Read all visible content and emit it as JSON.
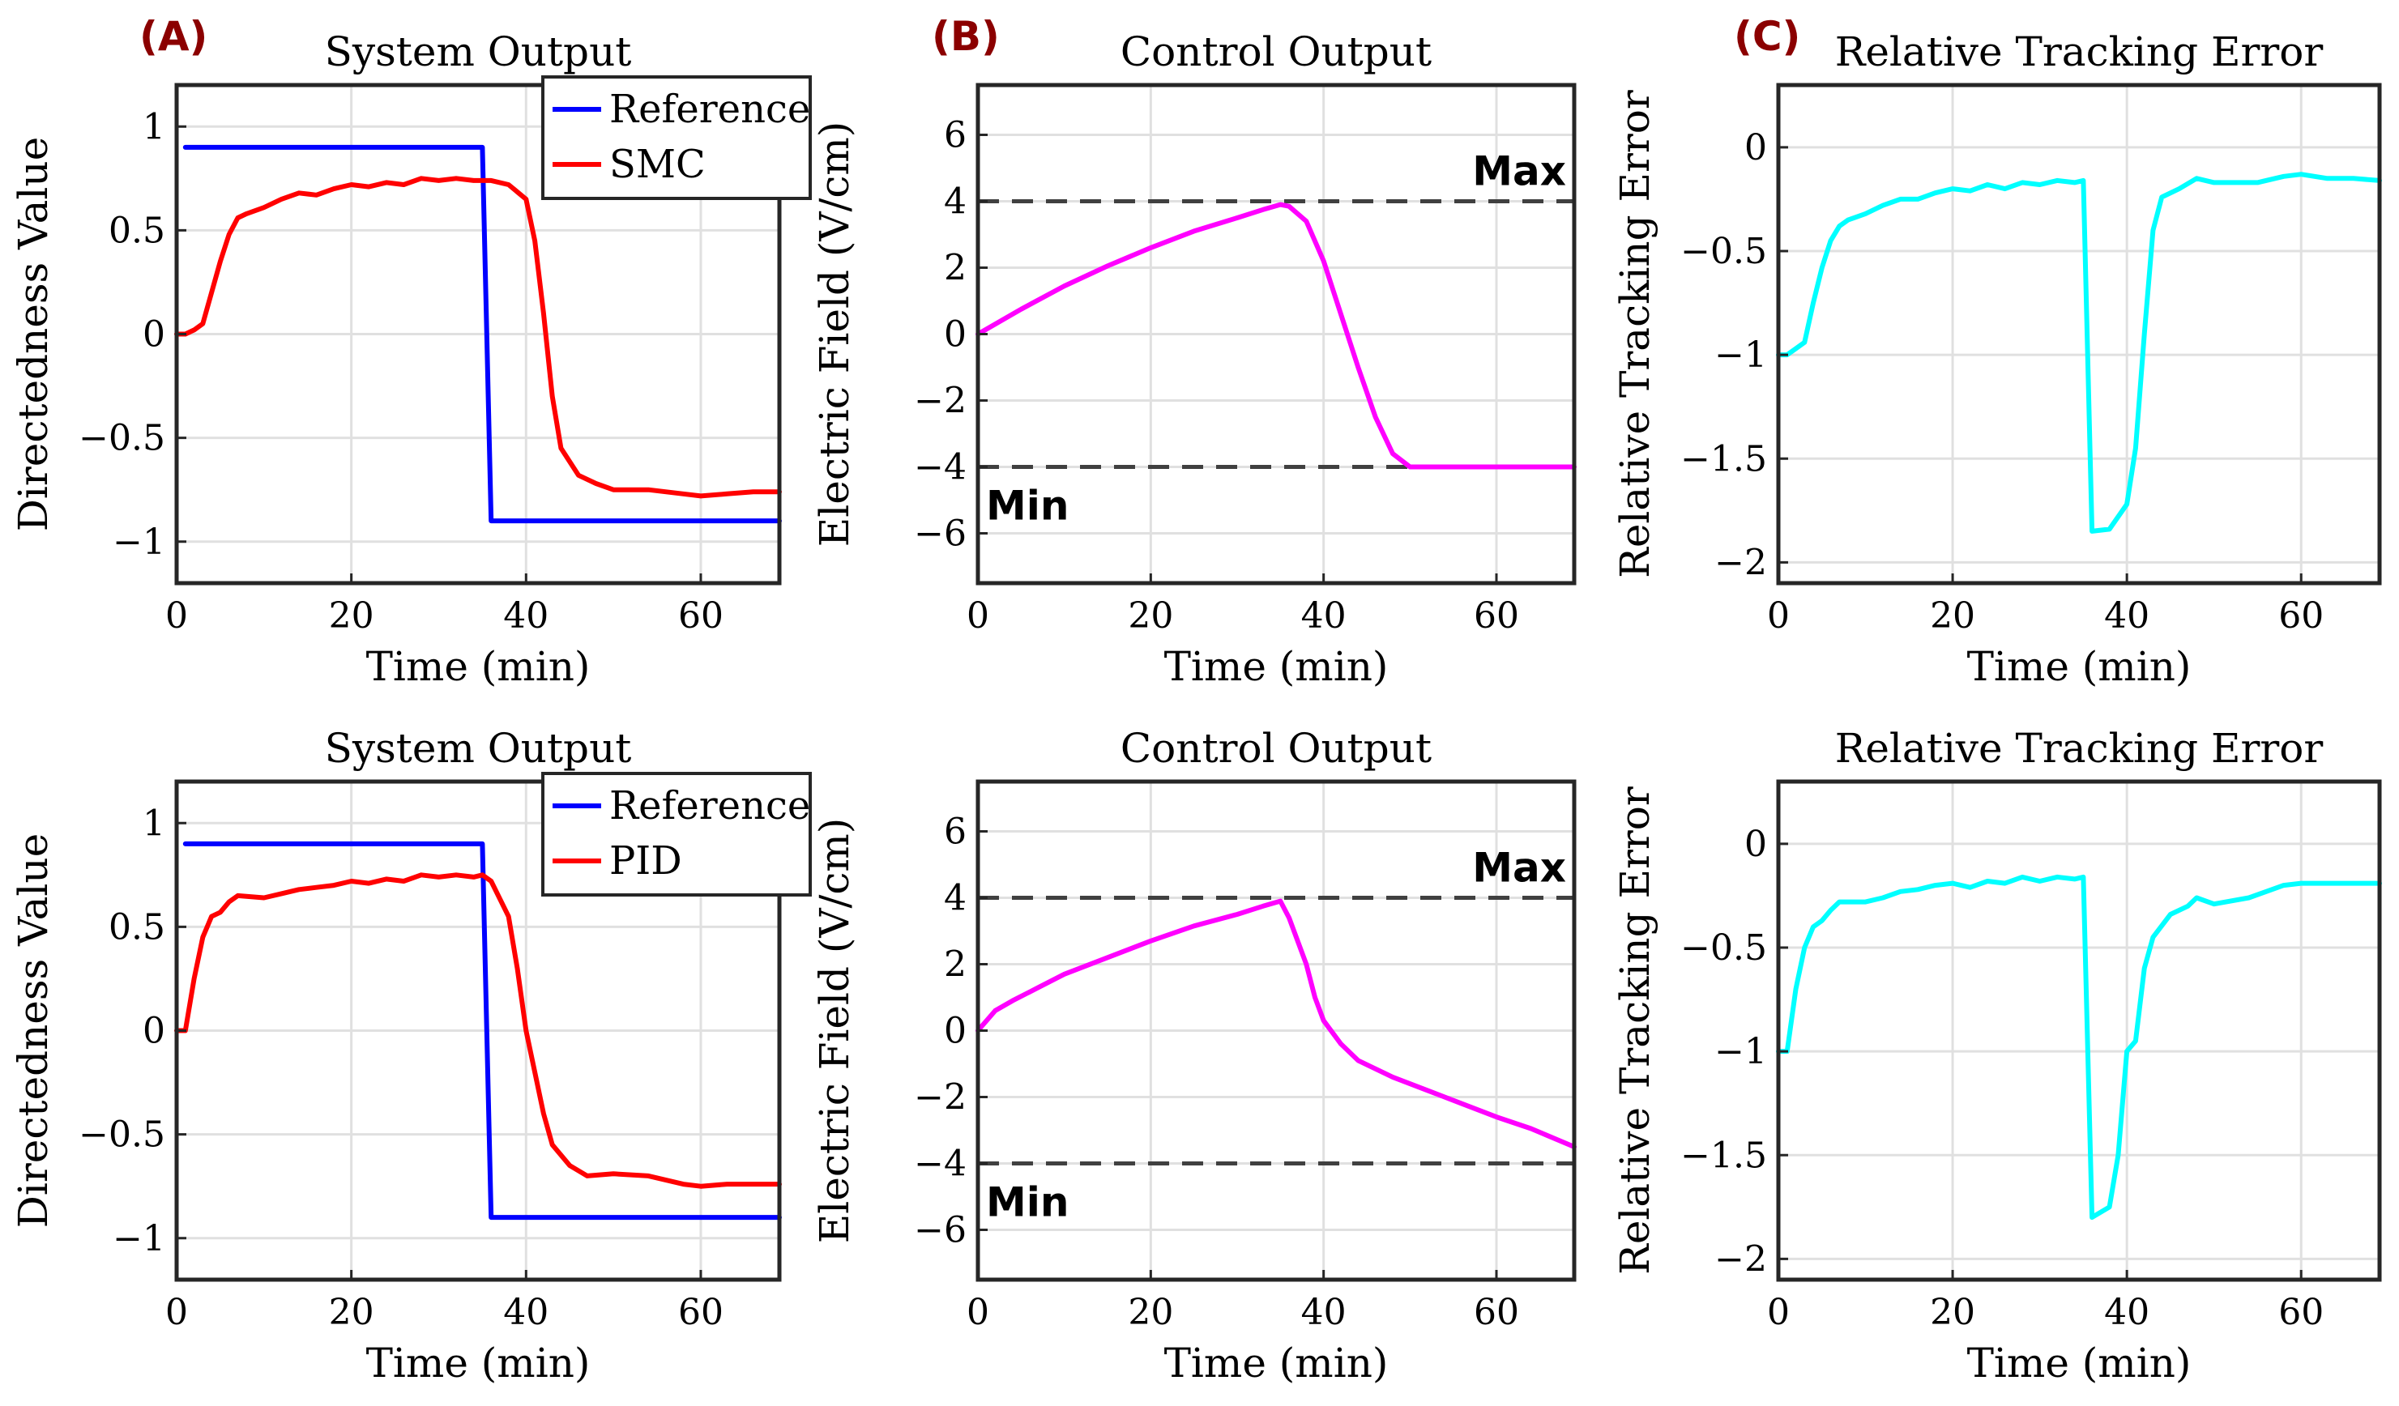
{
  "panel_labels": [
    "(A)",
    "(B)",
    "(C)"
  ],
  "chart_data": [
    {
      "id": "smc-system",
      "type": "line",
      "title": "System Output",
      "xlabel": "Time (min)",
      "ylabel": "Directedness Value",
      "xlim": [
        0,
        69
      ],
      "ylim": [
        -1.2,
        1.2
      ],
      "xticks": [
        0,
        20,
        40,
        60
      ],
      "yticks": [
        -1,
        -0.5,
        0,
        0.5,
        1
      ],
      "ytick_labels": [
        "−1",
        "−0.5",
        "0",
        "0.5",
        "1"
      ],
      "grid": true,
      "legend": {
        "position": "top-right",
        "entries": [
          "Reference",
          "SMC"
        ]
      },
      "series": [
        {
          "name": "Reference",
          "color": "#0000ff",
          "points": [
            [
              1,
              0.9
            ],
            [
              35,
              0.9
            ],
            [
              36,
              -0.9
            ],
            [
              69,
              -0.9
            ]
          ]
        },
        {
          "name": "SMC",
          "color": "#ff0000",
          "points": [
            [
              0,
              0
            ],
            [
              1,
              0
            ],
            [
              2,
              0.02
            ],
            [
              3,
              0.05
            ],
            [
              4,
              0.2
            ],
            [
              5,
              0.35
            ],
            [
              6,
              0.48
            ],
            [
              7,
              0.56
            ],
            [
              8,
              0.58
            ],
            [
              10,
              0.61
            ],
            [
              12,
              0.65
            ],
            [
              14,
              0.68
            ],
            [
              16,
              0.67
            ],
            [
              18,
              0.7
            ],
            [
              20,
              0.72
            ],
            [
              22,
              0.71
            ],
            [
              24,
              0.73
            ],
            [
              26,
              0.72
            ],
            [
              28,
              0.75
            ],
            [
              30,
              0.74
            ],
            [
              32,
              0.75
            ],
            [
              34,
              0.74
            ],
            [
              36,
              0.74
            ],
            [
              38,
              0.72
            ],
            [
              40,
              0.65
            ],
            [
              41,
              0.45
            ],
            [
              42,
              0.1
            ],
            [
              43,
              -0.3
            ],
            [
              44,
              -0.55
            ],
            [
              46,
              -0.68
            ],
            [
              48,
              -0.72
            ],
            [
              50,
              -0.75
            ],
            [
              54,
              -0.75
            ],
            [
              58,
              -0.77
            ],
            [
              60,
              -0.78
            ],
            [
              63,
              -0.77
            ],
            [
              66,
              -0.76
            ],
            [
              69,
              -0.76
            ]
          ]
        }
      ]
    },
    {
      "id": "smc-control",
      "type": "line",
      "title": "Control Output",
      "xlabel": "Time (min)",
      "ylabel": "Electric Field (V/cm)",
      "xlim": [
        0,
        69
      ],
      "ylim": [
        -7.5,
        7.5
      ],
      "xticks": [
        0,
        20,
        40,
        60
      ],
      "yticks": [
        -6,
        -4,
        -2,
        0,
        2,
        4,
        6
      ],
      "ytick_labels": [
        "−6",
        "−4",
        "−2",
        "0",
        "2",
        "4",
        "6"
      ],
      "grid": true,
      "max_label": "Max",
      "min_label": "Min",
      "limits": [
        4,
        -4
      ],
      "series": [
        {
          "name": "Electric Field",
          "color": "#ff00ff",
          "points": [
            [
              0,
              0
            ],
            [
              5,
              0.75
            ],
            [
              10,
              1.45
            ],
            [
              15,
              2.05
            ],
            [
              20,
              2.6
            ],
            [
              25,
              3.1
            ],
            [
              30,
              3.5
            ],
            [
              33,
              3.75
            ],
            [
              35,
              3.9
            ],
            [
              36,
              3.85
            ],
            [
              38,
              3.4
            ],
            [
              40,
              2.2
            ],
            [
              42,
              0.6
            ],
            [
              44,
              -1.0
            ],
            [
              46,
              -2.5
            ],
            [
              48,
              -3.6
            ],
            [
              50,
              -4.0
            ],
            [
              69,
              -4.0
            ]
          ]
        }
      ]
    },
    {
      "id": "smc-error",
      "type": "line",
      "title": "Relative Tracking Error",
      "xlabel": "Time (min)",
      "ylabel": "Relative Tracking Error",
      "xlim": [
        0,
        69
      ],
      "ylim": [
        -2.1,
        0.3
      ],
      "xticks": [
        0,
        20,
        40,
        60
      ],
      "yticks": [
        -2,
        -1.5,
        -1,
        -0.5,
        0
      ],
      "ytick_labels": [
        "−2",
        "−1.5",
        "−1",
        "−0.5",
        "0"
      ],
      "grid": true,
      "series": [
        {
          "name": "Error",
          "color": "#00ffff",
          "points": [
            [
              0,
              -1.0
            ],
            [
              1,
              -1.0
            ],
            [
              2,
              -0.97
            ],
            [
              3,
              -0.94
            ],
            [
              4,
              -0.75
            ],
            [
              5,
              -0.58
            ],
            [
              6,
              -0.45
            ],
            [
              7,
              -0.38
            ],
            [
              8,
              -0.35
            ],
            [
              10,
              -0.32
            ],
            [
              12,
              -0.28
            ],
            [
              14,
              -0.25
            ],
            [
              16,
              -0.25
            ],
            [
              18,
              -0.22
            ],
            [
              20,
              -0.2
            ],
            [
              22,
              -0.21
            ],
            [
              24,
              -0.18
            ],
            [
              26,
              -0.2
            ],
            [
              28,
              -0.17
            ],
            [
              30,
              -0.18
            ],
            [
              32,
              -0.16
            ],
            [
              34,
              -0.17
            ],
            [
              35,
              -0.16
            ],
            [
              36,
              -1.85
            ],
            [
              38,
              -1.84
            ],
            [
              40,
              -1.72
            ],
            [
              41,
              -1.45
            ],
            [
              42,
              -0.9
            ],
            [
              43,
              -0.4
            ],
            [
              44,
              -0.24
            ],
            [
              46,
              -0.2
            ],
            [
              48,
              -0.15
            ],
            [
              50,
              -0.17
            ],
            [
              55,
              -0.17
            ],
            [
              58,
              -0.14
            ],
            [
              60,
              -0.13
            ],
            [
              63,
              -0.15
            ],
            [
              66,
              -0.15
            ],
            [
              69,
              -0.16
            ]
          ]
        }
      ]
    },
    {
      "id": "pid-system",
      "type": "line",
      "title": "System Output",
      "xlabel": "Time (min)",
      "ylabel": "Directedness Value",
      "xlim": [
        0,
        69
      ],
      "ylim": [
        -1.2,
        1.2
      ],
      "xticks": [
        0,
        20,
        40,
        60
      ],
      "yticks": [
        -1,
        -0.5,
        0,
        0.5,
        1
      ],
      "ytick_labels": [
        "−1",
        "−0.5",
        "0",
        "0.5",
        "1"
      ],
      "grid": true,
      "legend": {
        "position": "top-right",
        "entries": [
          "Reference",
          "PID"
        ]
      },
      "series": [
        {
          "name": "Reference",
          "color": "#0000ff",
          "points": [
            [
              1,
              0.9
            ],
            [
              35,
              0.9
            ],
            [
              36,
              -0.9
            ],
            [
              69,
              -0.9
            ]
          ]
        },
        {
          "name": "PID",
          "color": "#ff0000",
          "points": [
            [
              0,
              0
            ],
            [
              1,
              0
            ],
            [
              2,
              0.25
            ],
            [
              3,
              0.45
            ],
            [
              4,
              0.55
            ],
            [
              5,
              0.57
            ],
            [
              6,
              0.62
            ],
            [
              7,
              0.65
            ],
            [
              10,
              0.64
            ],
            [
              12,
              0.66
            ],
            [
              14,
              0.68
            ],
            [
              16,
              0.69
            ],
            [
              18,
              0.7
            ],
            [
              20,
              0.72
            ],
            [
              22,
              0.71
            ],
            [
              24,
              0.73
            ],
            [
              26,
              0.72
            ],
            [
              28,
              0.75
            ],
            [
              30,
              0.74
            ],
            [
              32,
              0.75
            ],
            [
              34,
              0.74
            ],
            [
              35,
              0.75
            ],
            [
              36,
              0.72
            ],
            [
              38,
              0.55
            ],
            [
              39,
              0.3
            ],
            [
              40,
              0.0
            ],
            [
              41,
              -0.2
            ],
            [
              42,
              -0.4
            ],
            [
              43,
              -0.55
            ],
            [
              45,
              -0.65
            ],
            [
              47,
              -0.7
            ],
            [
              50,
              -0.69
            ],
            [
              54,
              -0.7
            ],
            [
              58,
              -0.74
            ],
            [
              60,
              -0.75
            ],
            [
              63,
              -0.74
            ],
            [
              66,
              -0.74
            ],
            [
              69,
              -0.74
            ]
          ]
        }
      ]
    },
    {
      "id": "pid-control",
      "type": "line",
      "title": "Control Output",
      "xlabel": "Time (min)",
      "ylabel": "Electric Field (V/cm)",
      "xlim": [
        0,
        69
      ],
      "ylim": [
        -7.5,
        7.5
      ],
      "xticks": [
        0,
        20,
        40,
        60
      ],
      "yticks": [
        -6,
        -4,
        -2,
        0,
        2,
        4,
        6
      ],
      "ytick_labels": [
        "−6",
        "−4",
        "−2",
        "0",
        "2",
        "4",
        "6"
      ],
      "grid": true,
      "max_label": "Max",
      "min_label": "Min",
      "limits": [
        4,
        -4
      ],
      "series": [
        {
          "name": "Electric Field",
          "color": "#ff00ff",
          "points": [
            [
              0,
              0
            ],
            [
              1,
              0.3
            ],
            [
              2,
              0.6
            ],
            [
              4,
              0.9
            ],
            [
              7,
              1.3
            ],
            [
              10,
              1.7
            ],
            [
              15,
              2.2
            ],
            [
              20,
              2.7
            ],
            [
              25,
              3.15
            ],
            [
              30,
              3.5
            ],
            [
              33,
              3.75
            ],
            [
              35,
              3.9
            ],
            [
              36,
              3.4
            ],
            [
              38,
              2.0
            ],
            [
              39,
              1.0
            ],
            [
              40,
              0.3
            ],
            [
              42,
              -0.4
            ],
            [
              44,
              -0.9
            ],
            [
              48,
              -1.4
            ],
            [
              52,
              -1.8
            ],
            [
              56,
              -2.2
            ],
            [
              60,
              -2.6
            ],
            [
              64,
              -2.95
            ],
            [
              69,
              -3.5
            ]
          ]
        }
      ]
    },
    {
      "id": "pid-error",
      "type": "line",
      "title": "Relative Tracking Error",
      "xlabel": "Time (min)",
      "ylabel": "Relative Tracking Error",
      "xlim": [
        0,
        69
      ],
      "ylim": [
        -2.1,
        0.3
      ],
      "xticks": [
        0,
        20,
        40,
        60
      ],
      "yticks": [
        -2,
        -1.5,
        -1,
        -0.5,
        0
      ],
      "ytick_labels": [
        "−2",
        "−1.5",
        "−1",
        "−0.5",
        "0"
      ],
      "grid": true,
      "series": [
        {
          "name": "Error",
          "color": "#00ffff",
          "points": [
            [
              0,
              -1.0
            ],
            [
              1,
              -1.0
            ],
            [
              2,
              -0.7
            ],
            [
              3,
              -0.5
            ],
            [
              4,
              -0.4
            ],
            [
              5,
              -0.37
            ],
            [
              6,
              -0.32
            ],
            [
              7,
              -0.28
            ],
            [
              10,
              -0.28
            ],
            [
              12,
              -0.26
            ],
            [
              14,
              -0.23
            ],
            [
              16,
              -0.22
            ],
            [
              18,
              -0.2
            ],
            [
              20,
              -0.19
            ],
            [
              22,
              -0.21
            ],
            [
              24,
              -0.18
            ],
            [
              26,
              -0.19
            ],
            [
              28,
              -0.16
            ],
            [
              30,
              -0.18
            ],
            [
              32,
              -0.16
            ],
            [
              34,
              -0.17
            ],
            [
              35,
              -0.16
            ],
            [
              36,
              -1.8
            ],
            [
              38,
              -1.75
            ],
            [
              39,
              -1.5
            ],
            [
              40,
              -1.0
            ],
            [
              41,
              -0.95
            ],
            [
              42,
              -0.6
            ],
            [
              43,
              -0.45
            ],
            [
              45,
              -0.34
            ],
            [
              47,
              -0.3
            ],
            [
              48,
              -0.26
            ],
            [
              50,
              -0.29
            ],
            [
              54,
              -0.26
            ],
            [
              58,
              -0.2
            ],
            [
              60,
              -0.19
            ],
            [
              63,
              -0.19
            ],
            [
              66,
              -0.19
            ],
            [
              69,
              -0.19
            ]
          ]
        }
      ]
    }
  ]
}
